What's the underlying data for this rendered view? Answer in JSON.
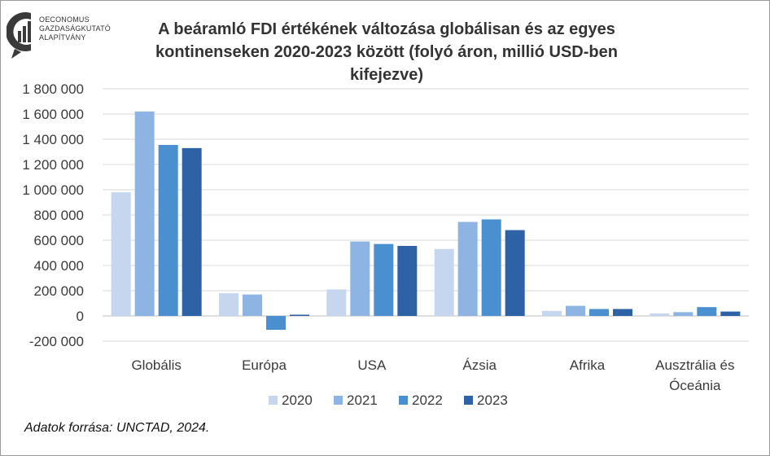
{
  "logo": {
    "lines": [
      "OECONOMUS",
      "GAZDASÁGKUTATÓ",
      "ALAPÍTVÁNY"
    ]
  },
  "chart_data": {
    "type": "bar",
    "title_lines": [
      "A beáramló FDI értékének változása globálisan és az egyes",
      "kontinenseken 2020-2023 között (folyó áron, millió USD-ben kifejezve)"
    ],
    "categories": [
      [
        "Globális"
      ],
      [
        "Európa"
      ],
      [
        "USA"
      ],
      [
        "Ázsia"
      ],
      [
        "Afrika"
      ],
      [
        "Ausztrália és",
        "Óceánia"
      ]
    ],
    "series": [
      {
        "name": "2020",
        "color": "#c5d6ee",
        "values": [
          980000,
          180000,
          210000,
          530000,
          40000,
          20000
        ]
      },
      {
        "name": "2021",
        "color": "#8db4e2",
        "values": [
          1620000,
          170000,
          590000,
          745000,
          80000,
          30000
        ]
      },
      {
        "name": "2022",
        "color": "#4a8fd0",
        "values": [
          1355000,
          -110000,
          570000,
          765000,
          55000,
          70000
        ]
      },
      {
        "name": "2023",
        "color": "#2e62a6",
        "values": [
          1330000,
          10000,
          555000,
          680000,
          55000,
          35000
        ]
      }
    ],
    "ylim": [
      -200000,
      1800000
    ],
    "yticks": [
      -200000,
      0,
      200000,
      400000,
      600000,
      800000,
      1000000,
      1200000,
      1400000,
      1600000,
      1800000
    ],
    "ytick_labels": [
      "-200 000",
      "0",
      "200 000",
      "400 000",
      "600 000",
      "800 000",
      "1 000 000",
      "1 200 000",
      "1 400 000",
      "1 600 000",
      "1 800 000"
    ],
    "grid": true,
    "legend_position": "bottom"
  },
  "source": "Adatok forrása: UNCTAD, 2024."
}
